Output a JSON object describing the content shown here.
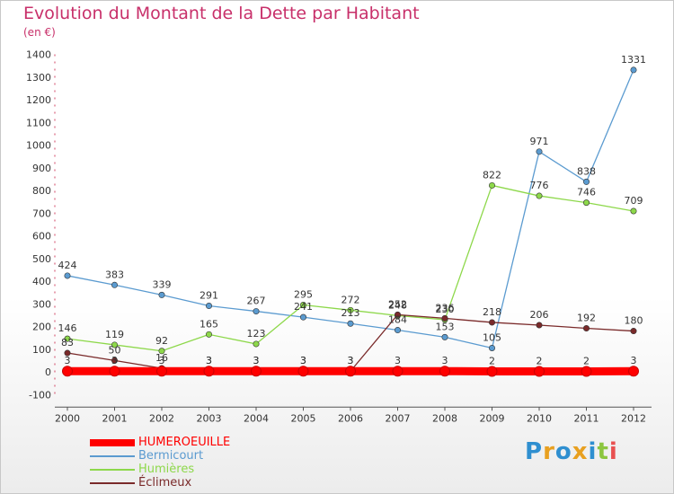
{
  "chart_data": {
    "type": "line",
    "title": "Evolution du Montant de la Dette par Habitant",
    "subtitle": "(en €)",
    "x": [
      "2000",
      "2001",
      "2002",
      "2003",
      "2004",
      "2005",
      "2006",
      "2007",
      "2008",
      "2009",
      "2010",
      "2011",
      "2012"
    ],
    "ylim": [
      -100,
      1400
    ],
    "yticks": [
      -100,
      0,
      100,
      200,
      300,
      400,
      500,
      600,
      700,
      800,
      900,
      1000,
      1100,
      1200,
      1300,
      1400
    ],
    "grid": false,
    "legend_position": "bottom-left",
    "series": [
      {
        "name": "HUMEROEUILLE",
        "color": "#ff0000",
        "values": [
          3,
          3,
          3,
          3,
          3,
          3,
          3,
          3,
          3,
          2,
          2,
          2,
          3
        ]
      },
      {
        "name": "Bermicourt",
        "color": "#5b9bd0",
        "values": [
          424,
          383,
          339,
          291,
          267,
          241,
          213,
          184,
          153,
          105,
          971,
          838,
          1331
        ]
      },
      {
        "name": "Humières",
        "color": "#8dd84a",
        "values": [
          146,
          119,
          92,
          165,
          123,
          295,
          272,
          248,
          230,
          822,
          776,
          746,
          709
        ]
      },
      {
        "name": "Éclimeux",
        "color": "#7a2a2a",
        "values": [
          83,
          50,
          16,
          3,
          3,
          3,
          3,
          252,
          236,
          218,
          206,
          192,
          180
        ]
      }
    ]
  },
  "logo": {
    "text": "Proxiti",
    "letters": [
      "P",
      "r",
      "o",
      "x",
      "i",
      "t",
      "i"
    ],
    "colors": [
      "#2f8fd0",
      "#e8a020",
      "#2f8fd0",
      "#e8a020",
      "#2f8fd0",
      "#8cc63f",
      "#e85050"
    ]
  }
}
